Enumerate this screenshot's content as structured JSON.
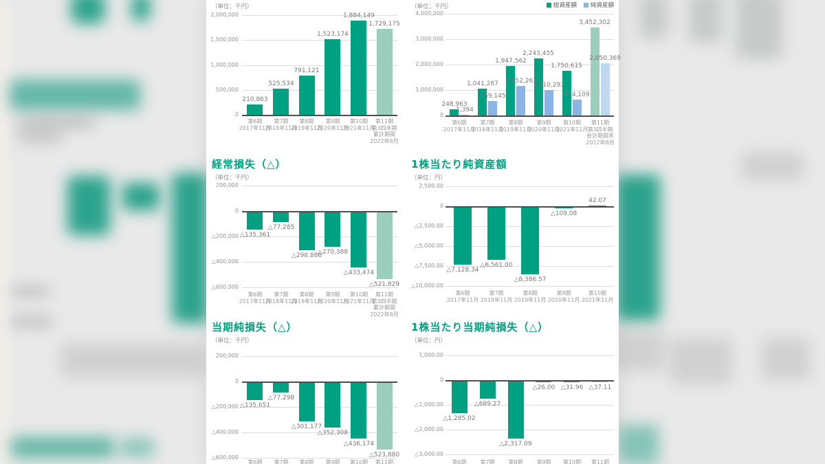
{
  "colors": {
    "bar_green": "#00A183",
    "bar_green_light": "#9BCEBC",
    "bar_blue": "#8AB4E5",
    "bar_blue_light": "#BFD8F2",
    "title_green": "#00A183",
    "axis_dark": "#4D4D4D",
    "grid_light": "#DCDCDC"
  },
  "chart_data": [
    {
      "type": "bar",
      "title": "",
      "unit": "（単位：千円）",
      "y_ticks": [
        {
          "label": "2,000,000",
          "v": 2000000
        },
        {
          "label": "1,500,000",
          "v": 1500000
        },
        {
          "label": "1,000,000",
          "v": 1000000
        },
        {
          "label": "500,000",
          "v": 500000
        },
        {
          "label": "0",
          "v": 0
        }
      ],
      "categories": [
        [
          "第6期",
          "2017年11月"
        ],
        [
          "第7期",
          "2018年11月"
        ],
        [
          "第8期",
          "2019年11月"
        ],
        [
          "第9期",
          "2020年11月"
        ],
        [
          "第10期",
          "2021年11月"
        ],
        [
          "第11期",
          "第3四半期",
          "累計期間",
          "2022年8月"
        ]
      ],
      "series": [
        {
          "name": "",
          "color": "green",
          "values": [
            210863,
            525534,
            791121,
            1523174,
            1884149,
            1729175
          ],
          "labels": [
            "210,863",
            "525,534",
            "791,121",
            "1,523,174",
            "1,884,149",
            "1,729,175"
          ]
        }
      ],
      "last_light": true
    },
    {
      "type": "bar",
      "title": "",
      "unit": "（単位：千円）",
      "legend": [
        {
          "label": "総資産額",
          "color": "green"
        },
        {
          "label": "純資産額",
          "color": "blue"
        }
      ],
      "y_ticks": [
        {
          "label": "4,000,000",
          "v": 4000000
        },
        {
          "label": "3,000,000",
          "v": 3000000
        },
        {
          "label": "2,000,000",
          "v": 2000000
        },
        {
          "label": "1,000,000",
          "v": 1000000
        },
        {
          "label": "0",
          "v": 0
        }
      ],
      "categories": [
        [
          "第6期",
          "2017年11月"
        ],
        [
          "第7期",
          "2018年11月"
        ],
        [
          "第8期",
          "2019年11月"
        ],
        [
          "第9期",
          "2020年11月"
        ],
        [
          "第10期",
          "2021年11月"
        ],
        [
          "第11期",
          "第3四半期",
          "会計期間末",
          "2022年8月"
        ]
      ],
      "series": [
        {
          "name": "総資産額",
          "color": "green",
          "values": [
            248963,
            1041287,
            1947562,
            2243455,
            1750615,
            3452302
          ],
          "labels": [
            "248,963",
            "1,041,287",
            "1,947,562",
            "2,243,455",
            "1,750,615",
            "3,452,302"
          ]
        },
        {
          "name": "純資産額",
          "color": "blue",
          "values": [
            1394,
            559145,
            1152263,
            1010293,
            614109,
            2050369
          ],
          "labels": [
            "1,394",
            "559,145",
            "1,152,263",
            "1,010,293",
            "614,109",
            "2,050,369"
          ]
        }
      ],
      "last_light": true
    },
    {
      "type": "bar",
      "title": "経常損失（△）",
      "unit": "（単位：千円）",
      "y_ticks": [
        {
          "label": "200,000",
          "v": 200000
        },
        {
          "label": "0",
          "v": 0
        },
        {
          "label": "△200,000",
          "v": -200000
        },
        {
          "label": "△400,000",
          "v": -400000
        },
        {
          "label": "△600,000",
          "v": -600000
        }
      ],
      "categories": [
        [
          "第6期",
          "2017年11月"
        ],
        [
          "第7期",
          "2018年11月"
        ],
        [
          "第8期",
          "2019年11月"
        ],
        [
          "第9期",
          "2020年11月"
        ],
        [
          "第10期",
          "2021年11月"
        ],
        [
          "第11期",
          "第3四半期",
          "累計期間",
          "2022年8月"
        ]
      ],
      "series": [
        {
          "name": "",
          "color": "green",
          "values": [
            -135361,
            -77285,
            -298886,
            -270388,
            -433474,
            -521829
          ],
          "labels": [
            "△135,361",
            "△77,285",
            "△298,886",
            "△270,388",
            "△433,474",
            "△521,829"
          ]
        }
      ],
      "last_light": true
    },
    {
      "type": "bar",
      "title": "1株当たり純資産額",
      "unit": "（単位：円）",
      "y_ticks": [
        {
          "label": "2,500.00",
          "v": 2500
        },
        {
          "label": "0",
          "v": 0
        },
        {
          "label": "△2,500.00",
          "v": -2500
        },
        {
          "label": "△5,000.00",
          "v": -5000
        },
        {
          "label": "△7,500.00",
          "v": -7500
        },
        {
          "label": "△10,000.00",
          "v": -10000
        }
      ],
      "categories": [
        [
          "第6期",
          "2017年11月"
        ],
        [
          "第7期",
          "2018年11月"
        ],
        [
          "第8期",
          "2019年11月"
        ],
        [
          "第9期",
          "2020年11月"
        ],
        [
          "第10期",
          "2021年11月"
        ]
      ],
      "series": [
        {
          "name": "",
          "color": "green",
          "values": [
            -7128.34,
            -6561.0,
            -8386.57,
            -109.08,
            42.07
          ],
          "labels": [
            "△7,128.34",
            "△6,561.00",
            "△8,386.57",
            "△109.08",
            "42.07"
          ]
        }
      ],
      "last_light": false
    },
    {
      "type": "bar",
      "title": "当期純損失（△）",
      "unit": "（単位：千円）",
      "y_ticks": [
        {
          "label": "200,000",
          "v": 200000
        },
        {
          "label": "0",
          "v": 0
        },
        {
          "label": "△200,000",
          "v": -200000
        },
        {
          "label": "△400,000",
          "v": -400000
        },
        {
          "label": "△600,000",
          "v": -600000
        }
      ],
      "categories": [
        [
          "第6期"
        ],
        [
          "第7期"
        ],
        [
          "第8期"
        ],
        [
          "第9期"
        ],
        [
          "第10期"
        ],
        [
          "第11期"
        ]
      ],
      "series": [
        {
          "name": "",
          "color": "green",
          "values": [
            -135651,
            -77298,
            -301177,
            -352308,
            -436174,
            -523880
          ],
          "labels": [
            "△135,651",
            "△77,298",
            "△301,177",
            "△352,308",
            "△436,174",
            "△523,880"
          ]
        }
      ],
      "last_light": true
    },
    {
      "type": "bar",
      "title": "1株当たり当期純損失（△）",
      "unit": "（単位：円）",
      "y_ticks": [
        {
          "label": "1,000.00",
          "v": 1000
        },
        {
          "label": "0",
          "v": 0
        },
        {
          "label": "△1,000.00",
          "v": -1000
        },
        {
          "label": "△2,000.00",
          "v": -2000
        },
        {
          "label": "△3,000.00",
          "v": -3000
        }
      ],
      "categories": [
        [
          "第6期"
        ],
        [
          "第7期"
        ],
        [
          "第8期"
        ],
        [
          "第9期"
        ],
        [
          "第10期"
        ],
        [
          "第11期"
        ]
      ],
      "series": [
        {
          "name": "",
          "color": "green",
          "values": [
            -1285.02,
            -689.27,
            -2317.09,
            -26.0,
            -31.96,
            -37.11
          ],
          "labels": [
            "△1,285.02",
            "△689.27",
            "△2,317.09",
            "△26.00",
            "△31.96",
            "△37.11"
          ]
        }
      ],
      "last_light": true
    }
  ]
}
